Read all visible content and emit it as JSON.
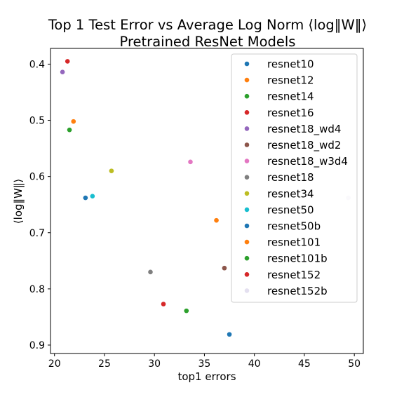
{
  "chart_data": {
    "type": "scatter",
    "title_line1": "Top 1 Test Error vs  Average Log Norm ⟨log‖W‖⟩",
    "title_line2": "Pretrained ResNet Models",
    "xlabel": "top1 errors",
    "ylabel": "⟨log‖W‖⟩",
    "xlim": [
      19.6,
      50.9
    ],
    "ylim": [
      0.915,
      0.372
    ],
    "y_inverted": true,
    "x_ticks": [
      20,
      25,
      30,
      35,
      40,
      45,
      50
    ],
    "x_tick_labels": [
      "20",
      "25",
      "30",
      "35",
      "40",
      "45",
      "50"
    ],
    "y_ticks": [
      0.4,
      0.5,
      0.6,
      0.7,
      0.8,
      0.9
    ],
    "y_tick_labels": [
      "0.4",
      "0.5",
      "0.6",
      "0.7",
      "0.8",
      "0.9"
    ],
    "grid": false,
    "legend_position": "upper-right",
    "series": [
      {
        "name": "resnet10",
        "color": "#1f77b4",
        "x": 23.1,
        "y": 0.638
      },
      {
        "name": "resnet12",
        "color": "#ff7f0e",
        "x": 21.9,
        "y": 0.502
      },
      {
        "name": "resnet14",
        "color": "#2ca02c",
        "x": 21.5,
        "y": 0.517
      },
      {
        "name": "resnet16",
        "color": "#d62728",
        "x": 21.3,
        "y": 0.395
      },
      {
        "name": "resnet18_wd4",
        "color": "#9467bd",
        "x": 20.8,
        "y": 0.414
      },
      {
        "name": "resnet18_wd2",
        "color": "#8c564b",
        "x": 37.0,
        "y": 0.763
      },
      {
        "name": "resnet18_w3d4",
        "color": "#e377c2",
        "x": 33.6,
        "y": 0.574
      },
      {
        "name": "resnet18",
        "color": "#7f7f7f",
        "x": 29.6,
        "y": 0.77
      },
      {
        "name": "resnet34",
        "color": "#bcbd22",
        "x": 25.7,
        "y": 0.59
      },
      {
        "name": "resnet50",
        "color": "#17becf",
        "x": 23.8,
        "y": 0.635
      },
      {
        "name": "resnet50b",
        "color": "#1f77b4",
        "x": 37.5,
        "y": 0.881
      },
      {
        "name": "resnet101",
        "color": "#ff7f0e",
        "x": 36.2,
        "y": 0.678
      },
      {
        "name": "resnet101b",
        "color": "#2ca02c",
        "x": 33.2,
        "y": 0.839
      },
      {
        "name": "resnet152",
        "color": "#d62728",
        "x": 30.9,
        "y": 0.827
      },
      {
        "name": "resnet152b",
        "color": "#e4e0f0",
        "x": 49.4,
        "y": 0.638
      }
    ]
  }
}
